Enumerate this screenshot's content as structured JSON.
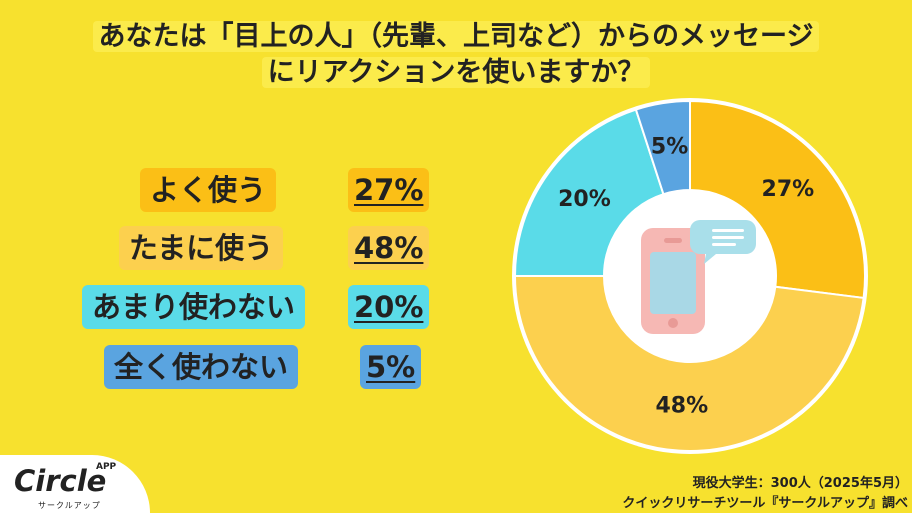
{
  "title": {
    "line1": "あなたは「目上の人」（先輩、上司など）からのメッセージ",
    "line2": "にリアクションを使いますか？"
  },
  "chart_data": {
    "type": "pie",
    "categories": [
      "よく使う",
      "たまに使う",
      "あまり使わない",
      "全く使わない"
    ],
    "values": [
      27,
      48,
      20,
      5
    ],
    "value_labels": [
      "27%",
      "48%",
      "20%",
      "5%"
    ],
    "colors": [
      "#fbbf16",
      "#fcd04e",
      "#5adbe8",
      "#5aa4e0"
    ],
    "donut": true,
    "legend": "left"
  },
  "legend_colors": [
    "#fbbf16",
    "#fcd04e",
    "#5adbe8",
    "#5aa4e0"
  ],
  "center_icon": "smartphone-chat-icon",
  "logo": {
    "name": "Circle",
    "sup": "APP",
    "sub": "サークルアップ"
  },
  "source": {
    "line1": "現役大学生：300人（2025年5月）",
    "line2": "クイックリサーチツール『サークルアップ』調べ"
  }
}
